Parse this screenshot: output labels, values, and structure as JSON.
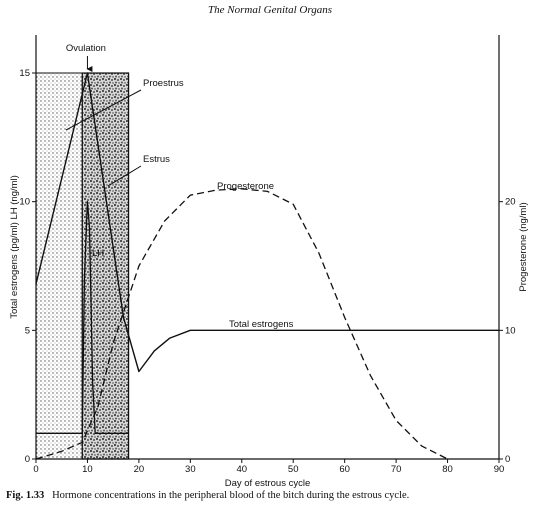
{
  "page": {
    "header": "The Normal Genital Organs",
    "caption_label": "Fig. 1.33",
    "caption_text": "Hormone concentrations in the peripheral blood of the bitch during the estrous cycle."
  },
  "chart_data": {
    "type": "line",
    "title": "",
    "xlabel": "Day of estrous cycle",
    "ylabel_left": "Total estrogens (pg/ml) LH (ng/ml)",
    "ylabel_right": "Progesterone (ng/ml)",
    "xlim": [
      0,
      90
    ],
    "ylim_left": [
      0,
      15
    ],
    "ylim_right": [
      0,
      30
    ],
    "x_ticks": [
      0,
      10,
      20,
      30,
      40,
      50,
      60,
      70,
      80,
      90
    ],
    "y_left_ticks": [
      0,
      5,
      10,
      15
    ],
    "y_right_ticks": [
      0,
      10,
      20
    ],
    "phases": [
      {
        "name": "Proestrus",
        "x": [
          0,
          9
        ]
      },
      {
        "name": "Estrus",
        "x": [
          9,
          18
        ]
      }
    ],
    "annotations": [
      "Ovulation",
      "Proestrus",
      "Estrus",
      "LH",
      "Progesterone",
      "Total estrogens"
    ],
    "series": [
      {
        "name": "Total estrogens",
        "axis": "left",
        "style": "solid",
        "x": [
          0,
          10,
          17,
          20,
          23,
          26,
          30,
          90
        ],
        "y": [
          6.8,
          15,
          5.5,
          3.4,
          4.2,
          4.7,
          5.0,
          5.0
        ]
      },
      {
        "name": "LH",
        "axis": "left",
        "style": "solid",
        "x": [
          0,
          9,
          9.4,
          10,
          10.4,
          11,
          11.5,
          12,
          18
        ],
        "y": [
          1,
          1,
          7,
          10,
          9,
          3,
          1,
          1,
          1
        ]
      },
      {
        "name": "Progesterone",
        "axis": "right",
        "style": "dashed",
        "x": [
          0,
          5,
          9,
          12,
          15,
          20,
          25,
          30,
          35,
          40,
          45,
          50,
          55,
          60,
          65,
          70,
          75,
          80
        ],
        "y": [
          0,
          0.6,
          1.3,
          4,
          9,
          15,
          18.5,
          20.5,
          20.9,
          21,
          20.8,
          19.8,
          16,
          11,
          6.5,
          3,
          1,
          0
        ]
      }
    ]
  }
}
